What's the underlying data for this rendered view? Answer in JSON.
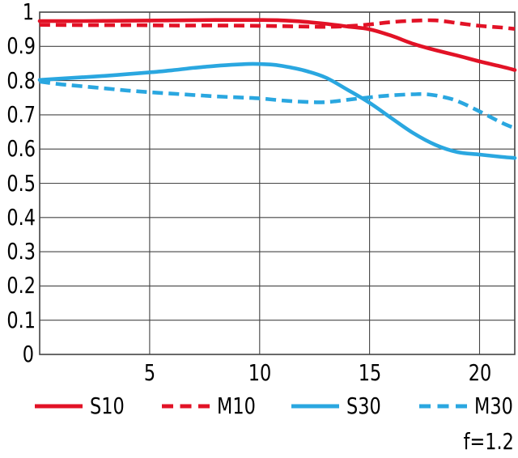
{
  "figure": {
    "caption": "f=1.2"
  },
  "chart_data": {
    "type": "line",
    "title": "",
    "xlabel": "",
    "ylabel": "",
    "xlim": [
      0,
      21.6
    ],
    "ylim": [
      0,
      1
    ],
    "x_tick_values": [
      5,
      10,
      15,
      20
    ],
    "x_tick_labels": [
      "5",
      "10",
      "15",
      "20"
    ],
    "y_tick_values": [
      1,
      0.9,
      0.8,
      0.7,
      0.6,
      0.5,
      0.4,
      0.3,
      0.2,
      0.1,
      0
    ],
    "y_tick_labels": [
      "1",
      "0.9",
      "0.8",
      "0.7",
      "0.6",
      "0.5",
      "0.4",
      "0.3",
      "0.2",
      "0.1",
      "0"
    ],
    "grid": true,
    "grid_color": "#444444",
    "legend_position": "bottom",
    "annotation": "f=1.2",
    "colors": {
      "red": "#e21226",
      "blue": "#2aa7e0"
    },
    "series": [
      {
        "name": "S10",
        "color": "#e21226",
        "style": "solid",
        "points": [
          [
            0,
            0.974
          ],
          [
            2,
            0.974
          ],
          [
            4,
            0.975
          ],
          [
            6,
            0.976
          ],
          [
            8,
            0.977
          ],
          [
            10,
            0.977
          ],
          [
            11,
            0.976
          ],
          [
            12,
            0.972
          ],
          [
            13,
            0.966
          ],
          [
            14,
            0.958
          ],
          [
            15,
            0.95
          ],
          [
            16,
            0.931
          ],
          [
            17,
            0.907
          ],
          [
            18,
            0.889
          ],
          [
            19,
            0.873
          ],
          [
            20,
            0.856
          ],
          [
            21,
            0.841
          ],
          [
            21.6,
            0.831
          ]
        ]
      },
      {
        "name": "M10",
        "color": "#e21226",
        "style": "dashed",
        "points": [
          [
            0,
            0.963
          ],
          [
            2,
            0.962
          ],
          [
            4,
            0.962
          ],
          [
            6,
            0.961
          ],
          [
            8,
            0.961
          ],
          [
            10,
            0.96
          ],
          [
            12,
            0.958
          ],
          [
            13,
            0.957
          ],
          [
            14,
            0.959
          ],
          [
            15,
            0.964
          ],
          [
            16,
            0.971
          ],
          [
            17,
            0.975
          ],
          [
            18,
            0.976
          ],
          [
            19,
            0.968
          ],
          [
            20,
            0.96
          ],
          [
            21,
            0.955
          ],
          [
            21.6,
            0.951
          ]
        ]
      },
      {
        "name": "S30",
        "color": "#2aa7e0",
        "style": "solid",
        "points": [
          [
            0,
            0.802
          ],
          [
            1,
            0.806
          ],
          [
            2,
            0.81
          ],
          [
            3,
            0.814
          ],
          [
            4,
            0.819
          ],
          [
            5,
            0.824
          ],
          [
            6,
            0.83
          ],
          [
            7,
            0.837
          ],
          [
            8,
            0.843
          ],
          [
            9,
            0.847
          ],
          [
            9.7,
            0.849
          ],
          [
            10.5,
            0.847
          ],
          [
            11,
            0.843
          ],
          [
            12,
            0.83
          ],
          [
            13,
            0.809
          ],
          [
            14,
            0.773
          ],
          [
            15,
            0.735
          ],
          [
            16,
            0.69
          ],
          [
            17,
            0.646
          ],
          [
            18,
            0.612
          ],
          [
            19,
            0.591
          ],
          [
            20,
            0.584
          ],
          [
            21,
            0.577
          ],
          [
            21.6,
            0.574
          ]
        ]
      },
      {
        "name": "M30",
        "color": "#2aa7e0",
        "style": "dashed",
        "points": [
          [
            0,
            0.797
          ],
          [
            1,
            0.789
          ],
          [
            2,
            0.783
          ],
          [
            3,
            0.777
          ],
          [
            4,
            0.771
          ],
          [
            5,
            0.766
          ],
          [
            6,
            0.762
          ],
          [
            7,
            0.758
          ],
          [
            8,
            0.754
          ],
          [
            9,
            0.751
          ],
          [
            10,
            0.748
          ],
          [
            11,
            0.742
          ],
          [
            12,
            0.738
          ],
          [
            13,
            0.737
          ],
          [
            14,
            0.744
          ],
          [
            15,
            0.751
          ],
          [
            16,
            0.757
          ],
          [
            17,
            0.76
          ],
          [
            17.6,
            0.76
          ],
          [
            18.3,
            0.753
          ],
          [
            19,
            0.74
          ],
          [
            20,
            0.71
          ],
          [
            21,
            0.677
          ],
          [
            21.6,
            0.661
          ]
        ]
      }
    ]
  }
}
